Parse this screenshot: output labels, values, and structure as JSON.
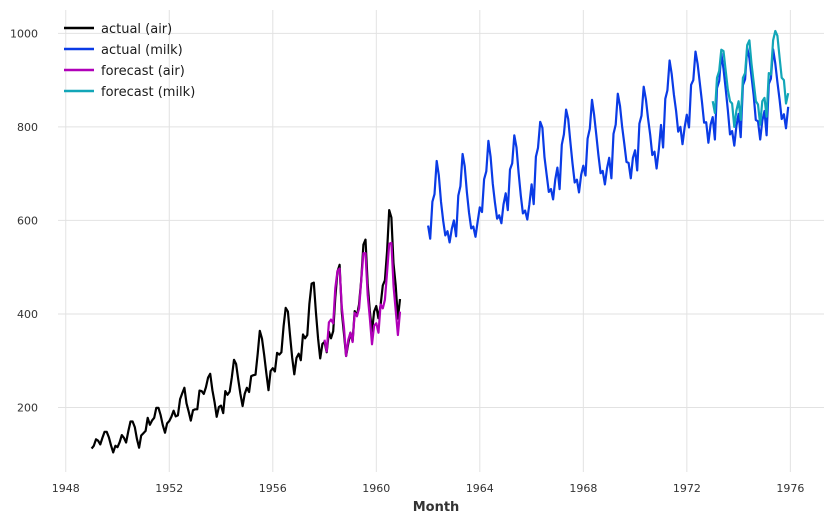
{
  "chart_data": {
    "type": "line",
    "xlabel": "Month",
    "ylabel": "",
    "xlim": [
      1947.7,
      1977.3
    ],
    "ylim": [
      62,
      1050
    ],
    "grid": true,
    "legend_position": "top-left",
    "x_ticks": [
      {
        "value": 1948,
        "label": "1948"
      },
      {
        "value": 1952,
        "label": "1952"
      },
      {
        "value": 1956,
        "label": "1956"
      },
      {
        "value": 1960,
        "label": "1960"
      },
      {
        "value": 1964,
        "label": "1964"
      },
      {
        "value": 1968,
        "label": "1968"
      },
      {
        "value": 1972,
        "label": "1972"
      },
      {
        "value": 1976,
        "label": "1976"
      }
    ],
    "y_ticks": [
      {
        "value": 200,
        "label": "200"
      },
      {
        "value": 400,
        "label": "400"
      },
      {
        "value": 600,
        "label": "600"
      },
      {
        "value": 800,
        "label": "800"
      },
      {
        "value": 1000,
        "label": "1000"
      }
    ],
    "series": [
      {
        "name": "actual (air)",
        "color": "#000000",
        "start": 1949.0,
        "step": 0.08333,
        "values": [
          112,
          118,
          132,
          129,
          121,
          135,
          148,
          148,
          136,
          119,
          104,
          118,
          115,
          126,
          141,
          135,
          125,
          149,
          170,
          170,
          158,
          133,
          114,
          140,
          145,
          150,
          178,
          163,
          172,
          178,
          199,
          199,
          184,
          162,
          146,
          166,
          171,
          180,
          193,
          181,
          183,
          218,
          230,
          242,
          209,
          191,
          172,
          194,
          196,
          196,
          236,
          235,
          229,
          243,
          264,
          272,
          237,
          211,
          180,
          201,
          204,
          188,
          235,
          227,
          234,
          264,
          302,
          293,
          259,
          229,
          203,
          229,
          242,
          233,
          267,
          269,
          270,
          315,
          364,
          347,
          312,
          274,
          237,
          278,
          284,
          277,
          317,
          313,
          318,
          374,
          413,
          405,
          355,
          306,
          271,
          306,
          315,
          301,
          356,
          348,
          355,
          422,
          465,
          467,
          404,
          347,
          305,
          336,
          340,
          318,
          362,
          348,
          363,
          435,
          491,
          505,
          404,
          359,
          310,
          337,
          360,
          342,
          406,
          396,
          420,
          472,
          548,
          559,
          463,
          407,
          362,
          405,
          417,
          391,
          419,
          461,
          472,
          535,
          622,
          606,
          508,
          461,
          390,
          432
        ]
      },
      {
        "name": "actual (milk)",
        "color": "#0a3be6",
        "start": 1962.0,
        "step": 0.08333,
        "values": [
          589,
          561,
          640,
          656,
          727,
          697,
          640,
          599,
          568,
          577,
          553,
          582,
          600,
          566,
          653,
          673,
          742,
          716,
          660,
          617,
          583,
          587,
          565,
          598,
          628,
          618,
          688,
          705,
          770,
          736,
          678,
          639,
          604,
          611,
          594,
          634,
          658,
          622,
          709,
          722,
          782,
          756,
          702,
          653,
          615,
          621,
          602,
          635,
          677,
          635,
          736,
          755,
          811,
          798,
          735,
          697,
          661,
          667,
          645,
          688,
          713,
          667,
          762,
          784,
          837,
          817,
          767,
          722,
          681,
          687,
          660,
          698,
          717,
          696,
          775,
          796,
          858,
          826,
          783,
          740,
          701,
          706,
          677,
          711,
          734,
          690,
          785,
          805,
          871,
          845,
          801,
          764,
          725,
          723,
          690,
          734,
          750,
          707,
          807,
          824,
          886,
          859,
          819,
          783,
          740,
          747,
          711,
          751,
          804,
          756,
          860,
          878,
          942,
          913,
          869,
          834,
          790,
          800,
          763,
          800,
          826,
          799,
          890,
          900,
          961,
          935,
          894,
          855,
          809,
          810,
          766,
          805,
          821,
          773,
          883,
          898,
          957,
          924,
          881,
          837,
          784,
          791,
          760,
          802,
          828,
          778,
          889,
          902,
          969,
          947,
          908,
          867,
          815,
          812,
          773,
          813,
          834,
          782,
          892,
          903,
          966,
          937,
          896,
          858,
          817,
          827,
          797,
          843
        ]
      },
      {
        "name": "forecast (air)",
        "color": "#b000b8",
        "start": 1958.0,
        "step": 0.08333,
        "values": [
          345,
          320,
          382,
          388,
          380,
          455,
          492,
          497,
          415,
          370,
          310,
          345,
          360,
          340,
          402,
          395,
          412,
          470,
          530,
          530,
          440,
          392,
          335,
          375,
          380,
          360,
          420,
          412,
          430,
          490,
          550,
          552,
          458,
          408,
          355,
          405
        ]
      },
      {
        "name": "forecast (milk)",
        "color": "#12a6b8",
        "start": 1973.0,
        "step": 0.08333,
        "values": [
          855,
          830,
          905,
          920,
          965,
          962,
          920,
          880,
          855,
          850,
          800,
          835,
          855,
          815,
          905,
          915,
          975,
          985,
          935,
          895,
          855,
          848,
          805,
          855,
          862,
          822,
          915,
          912,
          985,
          1005,
          995,
          948,
          905,
          900,
          850,
          872
        ]
      }
    ]
  }
}
